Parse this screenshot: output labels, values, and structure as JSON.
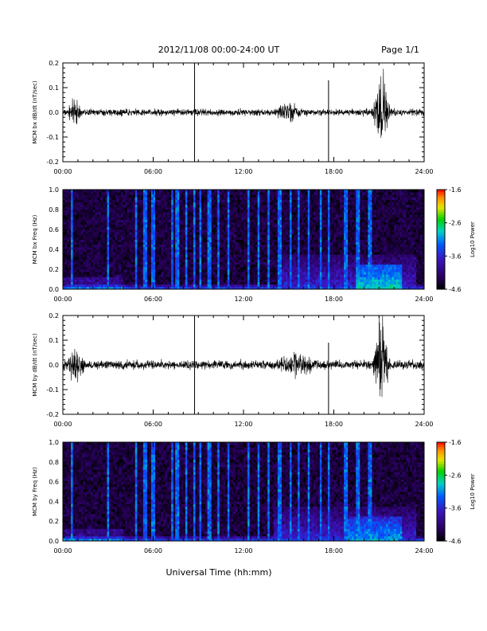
{
  "header": {
    "title": "2012/11/08  00:00-24:00 UT",
    "page": "Page 1/1"
  },
  "chart_data": [
    {
      "type": "line",
      "ylabel": "MCM bx dB/dt (nT/sec)",
      "xlim": [
        0,
        24
      ],
      "ylim": [
        -0.2,
        0.2
      ],
      "y_ticks": [
        "0.2",
        "0.1",
        "0.0",
        "-0.1",
        "-0.2"
      ],
      "x_ticks": [
        "00:00",
        "06:00",
        "12:00",
        "18:00",
        "24:00"
      ],
      "baseline_amplitude": 0.015,
      "spikes": [
        {
          "t": 8.75,
          "y": [
            -0.2,
            0.2
          ]
        },
        {
          "t": 17.65,
          "y": [
            -0.2,
            0.13
          ]
        }
      ],
      "bursts": [
        {
          "t": [
            0.3,
            1.2
          ],
          "amplitude": 0.05
        },
        {
          "t": [
            14.0,
            16.0
          ],
          "amplitude": 0.03
        },
        {
          "t": [
            20.5,
            21.8
          ],
          "amplitude": 0.18
        }
      ]
    },
    {
      "type": "heatmap",
      "ylabel": "MCM bx Freq (Hz)",
      "xlim": [
        0,
        24
      ],
      "ylim": [
        0.0,
        1.0
      ],
      "y_ticks": [
        "1.0",
        "0.8",
        "0.6",
        "0.4",
        "0.2",
        "0.0"
      ],
      "x_ticks": [
        "00:00",
        "06:00",
        "12:00",
        "18:00",
        "24:00"
      ],
      "colorbar": {
        "label": "Log10 Power",
        "ticks": [
          "-1.6",
          "-2.6",
          "-3.6",
          "-4.6"
        ],
        "range": [
          -4.6,
          -1.6
        ]
      },
      "vertical_lines": [
        0.6,
        3.0,
        4.85,
        5.45,
        6.0,
        7.25,
        7.6,
        8.2,
        8.75,
        9.1,
        9.75,
        10.3,
        11.0,
        12.3,
        13.0,
        13.7,
        14.4,
        15.1,
        15.7,
        16.3,
        17.1,
        17.7,
        18.8,
        19.6,
        20.4
      ],
      "activity_regions": [
        {
          "t": [
            14.5,
            23.5
          ],
          "f": [
            0.0,
            0.35
          ],
          "level": -3.6
        },
        {
          "t": [
            19.5,
            22.5
          ],
          "f": [
            0.0,
            0.25
          ],
          "level": -2.8
        }
      ]
    },
    {
      "type": "line",
      "ylabel": "MCM by dB/dt (nT/sec)",
      "xlim": [
        0,
        24
      ],
      "ylim": [
        -0.2,
        0.2
      ],
      "y_ticks": [
        "0.2",
        "0.1",
        "0.0",
        "-0.1",
        "-0.2"
      ],
      "x_ticks": [
        "00:00",
        "06:00",
        "12:00",
        "18:00",
        "24:00"
      ],
      "baseline_amplitude": 0.02,
      "spikes": [
        {
          "t": 8.75,
          "y": [
            -0.2,
            0.2
          ]
        },
        {
          "t": 17.65,
          "y": [
            -0.2,
            0.09
          ]
        }
      ],
      "bursts": [
        {
          "t": [
            0.3,
            1.5
          ],
          "amplitude": 0.09
        },
        {
          "t": [
            14.0,
            17.0
          ],
          "amplitude": 0.04
        },
        {
          "t": [
            20.5,
            21.8
          ],
          "amplitude": 0.2
        }
      ]
    },
    {
      "type": "heatmap",
      "ylabel": "MCM by Freq (Hz)",
      "xlim": [
        0,
        24
      ],
      "ylim": [
        0.0,
        1.0
      ],
      "y_ticks": [
        "1.0",
        "0.8",
        "0.6",
        "0.4",
        "0.2",
        "0.0"
      ],
      "x_ticks": [
        "00:00",
        "06:00",
        "12:00",
        "18:00",
        "24:00"
      ],
      "colorbar": {
        "label": "Log10 Power",
        "ticks": [
          "-1.6",
          "-2.6",
          "-3.6",
          "-4.6"
        ],
        "range": [
          -4.6,
          -1.6
        ]
      },
      "vertical_lines": [
        0.6,
        3.0,
        4.85,
        5.45,
        6.0,
        7.25,
        7.6,
        8.2,
        8.75,
        9.1,
        9.75,
        10.3,
        11.0,
        12.3,
        13.0,
        13.7,
        14.4,
        15.1,
        15.7,
        16.3,
        17.1,
        17.7,
        18.8,
        19.6,
        20.4
      ],
      "activity_regions": [
        {
          "t": [
            14.0,
            23.5
          ],
          "f": [
            0.0,
            0.35
          ],
          "level": -3.6
        },
        {
          "t": [
            19.0,
            22.5
          ],
          "f": [
            0.0,
            0.25
          ],
          "level": -3.0
        }
      ]
    }
  ],
  "xlabel": "Universal Time (hh:mm)"
}
